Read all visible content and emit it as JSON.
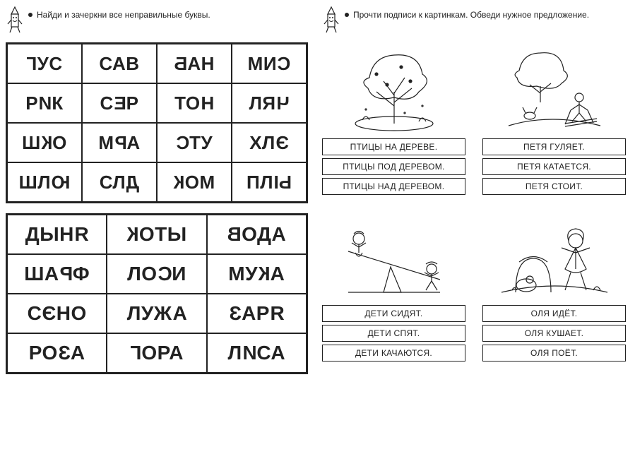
{
  "left": {
    "instruction": "Найди и зачеркни все неправильные буквы.",
    "grid4": [
      [
        [
          {
            "t": "Г",
            "m": true
          },
          {
            "t": "УС"
          }
        ],
        [
          {
            "t": "САВ"
          }
        ],
        [
          {
            "t": "Б",
            "m": true
          },
          {
            "t": "АН"
          }
        ],
        [
          {
            "t": "МИ"
          },
          {
            "t": "С",
            "m": true
          }
        ]
      ],
      [
        [
          {
            "t": "Р"
          },
          {
            "t": "И",
            "m": true
          },
          {
            "t": "К"
          }
        ],
        [
          {
            "t": "С"
          },
          {
            "t": "Е",
            "m": true
          },
          {
            "t": "Р"
          }
        ],
        [
          {
            "t": "ТО"
          },
          {
            "t": "Н",
            "m": true
          }
        ],
        [
          {
            "t": "ЛЯ"
          },
          {
            "t": "Ч",
            "m": true
          }
        ]
      ],
      [
        [
          {
            "t": "Ш"
          },
          {
            "t": "К",
            "m": true
          },
          {
            "t": "О"
          }
        ],
        [
          {
            "t": "М"
          },
          {
            "t": "Р",
            "m": true
          },
          {
            "t": "А"
          }
        ],
        [
          {
            "t": "С",
            "m": true
          },
          {
            "t": "ТУ"
          }
        ],
        [
          {
            "t": "ХЛ"
          },
          {
            "t": "Э",
            "m": true
          }
        ]
      ],
      [
        [
          {
            "t": "ШЛ"
          },
          {
            "t": "Ю",
            "m": true
          }
        ],
        [
          {
            "t": "СЛ"
          },
          {
            "t": "Д",
            "m": true
          }
        ],
        [
          {
            "t": "К",
            "m": true
          },
          {
            "t": "ОМ"
          }
        ],
        [
          {
            "t": "ПЛ"
          },
          {
            "t": "Ы",
            "m": true
          }
        ]
      ]
    ],
    "grid3": [
      [
        [
          {
            "t": "ДЫН"
          },
          {
            "t": "Я",
            "m": true
          }
        ],
        [
          {
            "t": "К",
            "m": true
          },
          {
            "t": "ОТЫ"
          }
        ],
        [
          {
            "t": "В",
            "m": true
          },
          {
            "t": "ОДА"
          }
        ]
      ],
      [
        [
          {
            "t": "ША"
          },
          {
            "t": "Р",
            "m": true
          },
          {
            "t": "Ф"
          }
        ],
        [
          {
            "t": "ЛО"
          },
          {
            "t": "С",
            "m": true
          },
          {
            "t": "И"
          }
        ],
        [
          {
            "t": "МУ"
          },
          {
            "t": "К",
            "m": true
          },
          {
            "t": "А"
          }
        ]
      ],
      [
        [
          {
            "t": "С"
          },
          {
            "t": "Э",
            "m": true
          },
          {
            "t": "НО"
          }
        ],
        [
          {
            "t": "ЛУЖ"
          },
          {
            "t": "А",
            "m": true
          }
        ],
        [
          {
            "t": "З",
            "m": true
          },
          {
            "t": "АР"
          },
          {
            "t": "Я",
            "m": true
          }
        ]
      ],
      [
        [
          {
            "t": "РО"
          },
          {
            "t": "З",
            "m": true
          },
          {
            "t": "А"
          }
        ],
        [
          {
            "t": "Г",
            "m": true
          },
          {
            "t": "ОРА"
          }
        ],
        [
          {
            "t": "Л"
          },
          {
            "t": "И",
            "m": true
          },
          {
            "t": "СА"
          }
        ]
      ]
    ]
  },
  "right": {
    "instruction": "Прочти подписи к картинкам. Обведи нужное предложение.",
    "cards": [
      {
        "pic": "tree",
        "captions": [
          "ПТИЦЫ НА ДЕРЕВЕ.",
          "ПТИЦЫ ПОД ДЕРЕВОМ.",
          "ПТИЦЫ НАД ДЕРЕВОМ."
        ]
      },
      {
        "pic": "skier",
        "captions": [
          "ПЕТЯ ГУЛЯЕТ.",
          "ПЕТЯ КАТАЕТСЯ.",
          "ПЕТЯ СТОИТ."
        ]
      },
      {
        "pic": "seesaw",
        "captions": [
          "ДЕТИ СИДЯТ.",
          "ДЕТИ СПЯТ.",
          "ДЕТИ КАЧАЮТСЯ."
        ]
      },
      {
        "pic": "girl",
        "captions": [
          "ОЛЯ ИДЁТ.",
          "ОЛЯ КУШАЕТ.",
          "ОЛЯ ПОЁТ."
        ]
      }
    ]
  },
  "colors": {
    "line": "#222222",
    "bg": "#ffffff"
  }
}
